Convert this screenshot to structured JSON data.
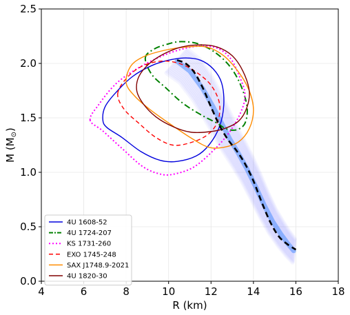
{
  "chart_data": {
    "type": "line",
    "title": "",
    "xlabel": "R (km)",
    "ylabel": "M (M",
    "ylabel_symbol": "⊙",
    "ylabel_close": ")",
    "xlim": [
      4,
      18
    ],
    "ylim": [
      0.0,
      2.5
    ],
    "xticks": [
      "4",
      "6",
      "8",
      "10",
      "12",
      "14",
      "16",
      "18"
    ],
    "yticks": [
      "0.0",
      "0.5",
      "1.0",
      "1.5",
      "2.0",
      "2.5"
    ],
    "grid": true,
    "legend_position": "lower-left",
    "mr_band": {
      "color": "#6f6fff",
      "center_color": "#4a8cff",
      "center": [
        [
          10.4,
          2.02
        ],
        [
          11.0,
          1.93
        ],
        [
          11.6,
          1.77
        ],
        [
          12.1,
          1.6
        ],
        [
          12.5,
          1.45
        ],
        [
          12.9,
          1.3
        ],
        [
          13.3,
          1.17
        ],
        [
          13.7,
          1.03
        ],
        [
          14.1,
          0.87
        ],
        [
          14.5,
          0.7
        ],
        [
          14.9,
          0.55
        ],
        [
          15.3,
          0.43
        ],
        [
          15.6,
          0.35
        ],
        [
          15.9,
          0.28
        ]
      ]
    },
    "series": [
      {
        "name": "4U 1608-52",
        "color": "#0000dd",
        "style": "solid",
        "closed": true,
        "points": [
          [
            6.9,
            1.48
          ],
          [
            7.0,
            1.6
          ],
          [
            7.5,
            1.73
          ],
          [
            8.3,
            1.88
          ],
          [
            9.2,
            1.98
          ],
          [
            10.0,
            2.03
          ],
          [
            10.8,
            2.05
          ],
          [
            11.5,
            2.03
          ],
          [
            12.1,
            1.95
          ],
          [
            12.5,
            1.82
          ],
          [
            12.6,
            1.62
          ],
          [
            12.4,
            1.42
          ],
          [
            11.9,
            1.25
          ],
          [
            11.3,
            1.15
          ],
          [
            10.4,
            1.1
          ],
          [
            9.6,
            1.11
          ],
          [
            8.7,
            1.19
          ],
          [
            7.8,
            1.32
          ],
          [
            7.1,
            1.41
          ]
        ]
      },
      {
        "name": "4U 1724-207",
        "color": "#008000",
        "style": "dashdot",
        "closed": true,
        "points": [
          [
            8.9,
            2.05
          ],
          [
            9.3,
            2.13
          ],
          [
            10.0,
            2.18
          ],
          [
            10.6,
            2.2
          ],
          [
            11.4,
            2.18
          ],
          [
            12.2,
            2.1
          ],
          [
            12.9,
            1.97
          ],
          [
            13.4,
            1.8
          ],
          [
            13.7,
            1.6
          ],
          [
            13.6,
            1.45
          ],
          [
            13.2,
            1.39
          ],
          [
            12.7,
            1.4
          ],
          [
            12.3,
            1.45
          ],
          [
            11.6,
            1.52
          ],
          [
            10.7,
            1.63
          ],
          [
            9.9,
            1.77
          ],
          [
            9.2,
            1.9
          ]
        ]
      },
      {
        "name": "KS 1731-260",
        "color": "#ff00ff",
        "style": "dotted",
        "closed": true,
        "points": [
          [
            6.3,
            1.48
          ],
          [
            6.7,
            1.62
          ],
          [
            7.5,
            1.81
          ],
          [
            8.5,
            1.95
          ],
          [
            9.6,
            2.06
          ],
          [
            10.6,
            2.13
          ],
          [
            11.5,
            2.16
          ],
          [
            12.3,
            2.14
          ],
          [
            12.9,
            2.05
          ],
          [
            13.3,
            1.9
          ],
          [
            13.6,
            1.72
          ],
          [
            13.4,
            1.55
          ],
          [
            12.8,
            1.35
          ],
          [
            12.0,
            1.18
          ],
          [
            11.2,
            1.05
          ],
          [
            10.4,
            0.99
          ],
          [
            9.7,
            0.98
          ],
          [
            8.8,
            1.05
          ],
          [
            7.8,
            1.22
          ],
          [
            6.9,
            1.38
          ]
        ]
      },
      {
        "name": "EXO 1745-248",
        "color": "#ff0000",
        "style": "dashed",
        "closed": true,
        "points": [
          [
            7.6,
            1.72
          ],
          [
            8.0,
            1.86
          ],
          [
            8.7,
            1.97
          ],
          [
            9.6,
            2.02
          ],
          [
            10.5,
            2.0
          ],
          [
            11.3,
            1.92
          ],
          [
            12.0,
            1.8
          ],
          [
            12.4,
            1.63
          ],
          [
            12.3,
            1.46
          ],
          [
            11.8,
            1.34
          ],
          [
            11.0,
            1.27
          ],
          [
            10.2,
            1.25
          ],
          [
            9.4,
            1.32
          ],
          [
            8.6,
            1.45
          ],
          [
            7.9,
            1.58
          ]
        ]
      },
      {
        "name": "SAX J1748.9-2021",
        "color": "#ff8c00",
        "style": "solid",
        "closed": true,
        "points": [
          [
            8.0,
            1.82
          ],
          [
            8.2,
            1.97
          ],
          [
            8.8,
            2.06
          ],
          [
            9.8,
            2.12
          ],
          [
            10.8,
            2.15
          ],
          [
            11.8,
            2.15
          ],
          [
            12.6,
            2.07
          ],
          [
            13.3,
            1.92
          ],
          [
            13.8,
            1.75
          ],
          [
            14.0,
            1.57
          ],
          [
            13.8,
            1.4
          ],
          [
            13.3,
            1.28
          ],
          [
            12.6,
            1.23
          ],
          [
            11.9,
            1.23
          ],
          [
            11.1,
            1.31
          ],
          [
            10.1,
            1.44
          ],
          [
            9.1,
            1.58
          ],
          [
            8.4,
            1.7
          ]
        ]
      },
      {
        "name": "4U 1820-30",
        "color": "#800000",
        "style": "solid",
        "closed": true,
        "points": [
          [
            8.5,
            1.75
          ],
          [
            8.6,
            1.88
          ],
          [
            9.1,
            2.0
          ],
          [
            9.8,
            2.09
          ],
          [
            10.6,
            2.15
          ],
          [
            11.5,
            2.17
          ],
          [
            12.3,
            2.15
          ],
          [
            13.0,
            2.07
          ],
          [
            13.5,
            1.93
          ],
          [
            13.8,
            1.75
          ],
          [
            13.7,
            1.6
          ],
          [
            13.3,
            1.47
          ],
          [
            12.6,
            1.4
          ],
          [
            11.8,
            1.37
          ],
          [
            11.0,
            1.37
          ],
          [
            10.2,
            1.42
          ],
          [
            9.4,
            1.51
          ],
          [
            8.8,
            1.63
          ]
        ]
      },
      {
        "name": "",
        "color": "#000000",
        "style": "bold-dashed",
        "closed": false,
        "points": [
          [
            10.4,
            2.03
          ],
          [
            10.8,
            2.0
          ],
          [
            11.2,
            1.92
          ],
          [
            11.6,
            1.78
          ],
          [
            12.0,
            1.6
          ],
          [
            12.4,
            1.43
          ],
          [
            12.8,
            1.3
          ],
          [
            13.2,
            1.2
          ],
          [
            13.6,
            1.08
          ],
          [
            14.0,
            0.92
          ],
          [
            14.4,
            0.72
          ],
          [
            14.8,
            0.54
          ],
          [
            15.2,
            0.41
          ],
          [
            15.6,
            0.34
          ],
          [
            16.0,
            0.29
          ]
        ]
      }
    ]
  }
}
